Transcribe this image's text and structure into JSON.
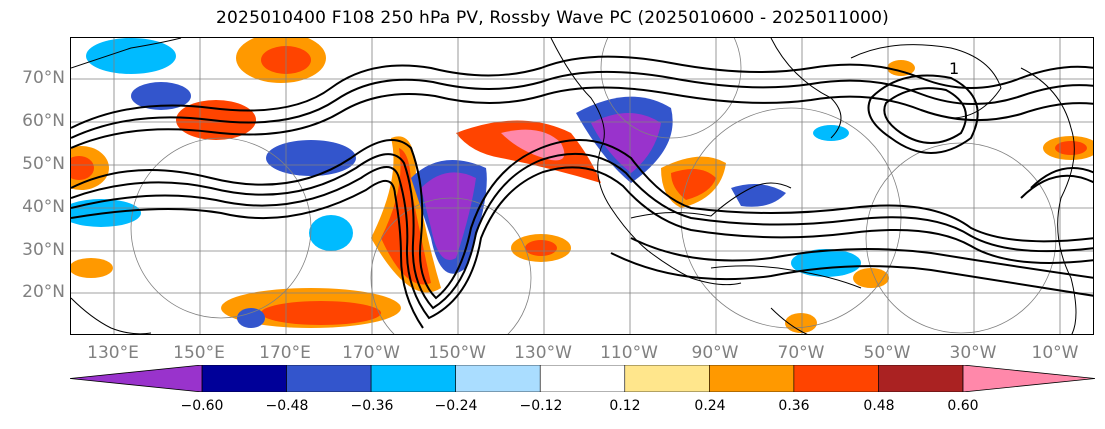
{
  "title": "2025010400 F108 250 hPa PV, Rossby Wave PC (2025010600 - 2025011000)",
  "map": {
    "lat_labels": [
      "70°N",
      "60°N",
      "50°N",
      "40°N",
      "30°N",
      "20°N"
    ],
    "lon_labels": [
      "130°E",
      "150°E",
      "170°E",
      "170°W",
      "150°W",
      "130°W",
      "110°W",
      "90°W",
      "70°W",
      "50°W",
      "30°W",
      "10°W"
    ],
    "contour_label": "1",
    "land_color": "#000000",
    "grid_color": "#808080"
  },
  "colorbar": {
    "colors": [
      "#9933cc",
      "#000099",
      "#3355cc",
      "#00bbff",
      "#aaddff",
      "#ffffff",
      "#ffe68c",
      "#ff9900",
      "#ff4400",
      "#aa2222",
      "#ff88aa"
    ],
    "under_color": "#9933cc",
    "over_color": "#ff88aa",
    "tick_labels": [
      "−0.60",
      "−0.48",
      "−0.36",
      "−0.24",
      "−0.12",
      "0.12",
      "0.24",
      "0.36",
      "0.48",
      "0.60"
    ]
  }
}
